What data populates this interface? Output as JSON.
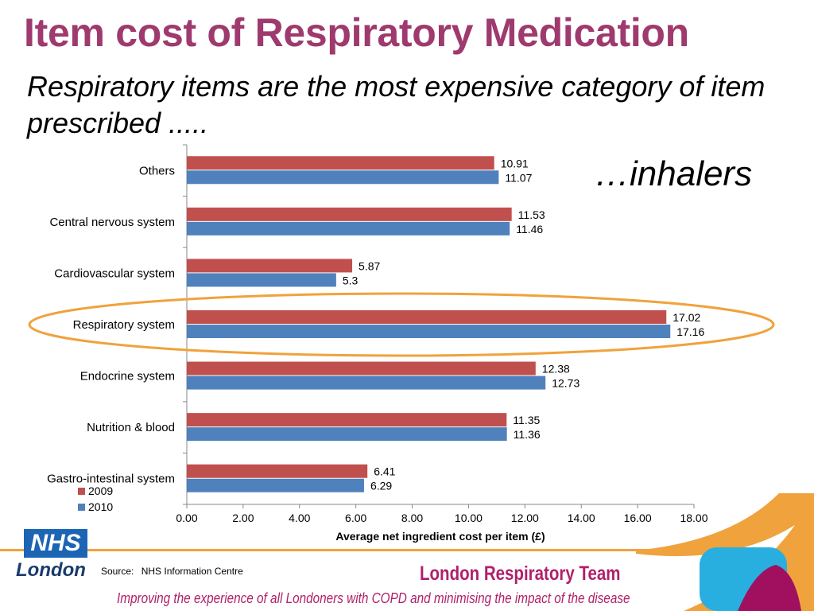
{
  "header": {
    "title": "Item cost of Respiratory Medication",
    "subtitle": "Respiratory items are the most expensive category of item prescribed .....",
    "tagline": "…inhalers"
  },
  "footer": {
    "nhs_logo": "NHS",
    "nhs_region": "London",
    "source_label": "Source:",
    "source_value": "NHS Information Centre",
    "team_name": "London Respiratory Team",
    "tagline": "Improving the experience of all Londoners with COPD and minimising the impact of the disease"
  },
  "colors": {
    "title": "#9e3a6e",
    "series_2009": "#c0504d",
    "series_2010": "#4f81bd",
    "highlight_ring": "#f0a23c",
    "brand_pink": "#b0206a",
    "nhs_blue": "#1c64b4"
  },
  "chart_data": {
    "type": "bar",
    "orientation": "horizontal",
    "categories": [
      "Others",
      "Central nervous system",
      "Cardiovascular system",
      "Respiratory system",
      "Endocrine system",
      "Nutrition & blood",
      "Gastro-intestinal system"
    ],
    "series": [
      {
        "name": "2009",
        "color": "#c0504d",
        "values": [
          10.91,
          11.53,
          5.87,
          17.02,
          12.38,
          11.35,
          6.41
        ]
      },
      {
        "name": "2010",
        "color": "#4f81bd",
        "values": [
          11.07,
          11.46,
          5.3,
          17.16,
          12.73,
          11.36,
          6.29
        ]
      }
    ],
    "value_labels": [
      [
        "10.91",
        "11.53",
        "5.87",
        "17.02",
        "12.38",
        "11.35",
        "6.41"
      ],
      [
        "11.07",
        "11.46",
        "5.3",
        "17.16",
        "12.73",
        "11.36",
        "6.29"
      ]
    ],
    "x_ticks": [
      "0.00",
      "2.00",
      "4.00",
      "6.00",
      "8.00",
      "10.00",
      "12.00",
      "14.00",
      "16.00",
      "18.00"
    ],
    "xlim": [
      0,
      18
    ],
    "xlabel": "Average net ingredient cost per item (£)",
    "ylabel": "",
    "grid": false,
    "legend": "bottom-left",
    "highlighted_category": "Respiratory system"
  }
}
